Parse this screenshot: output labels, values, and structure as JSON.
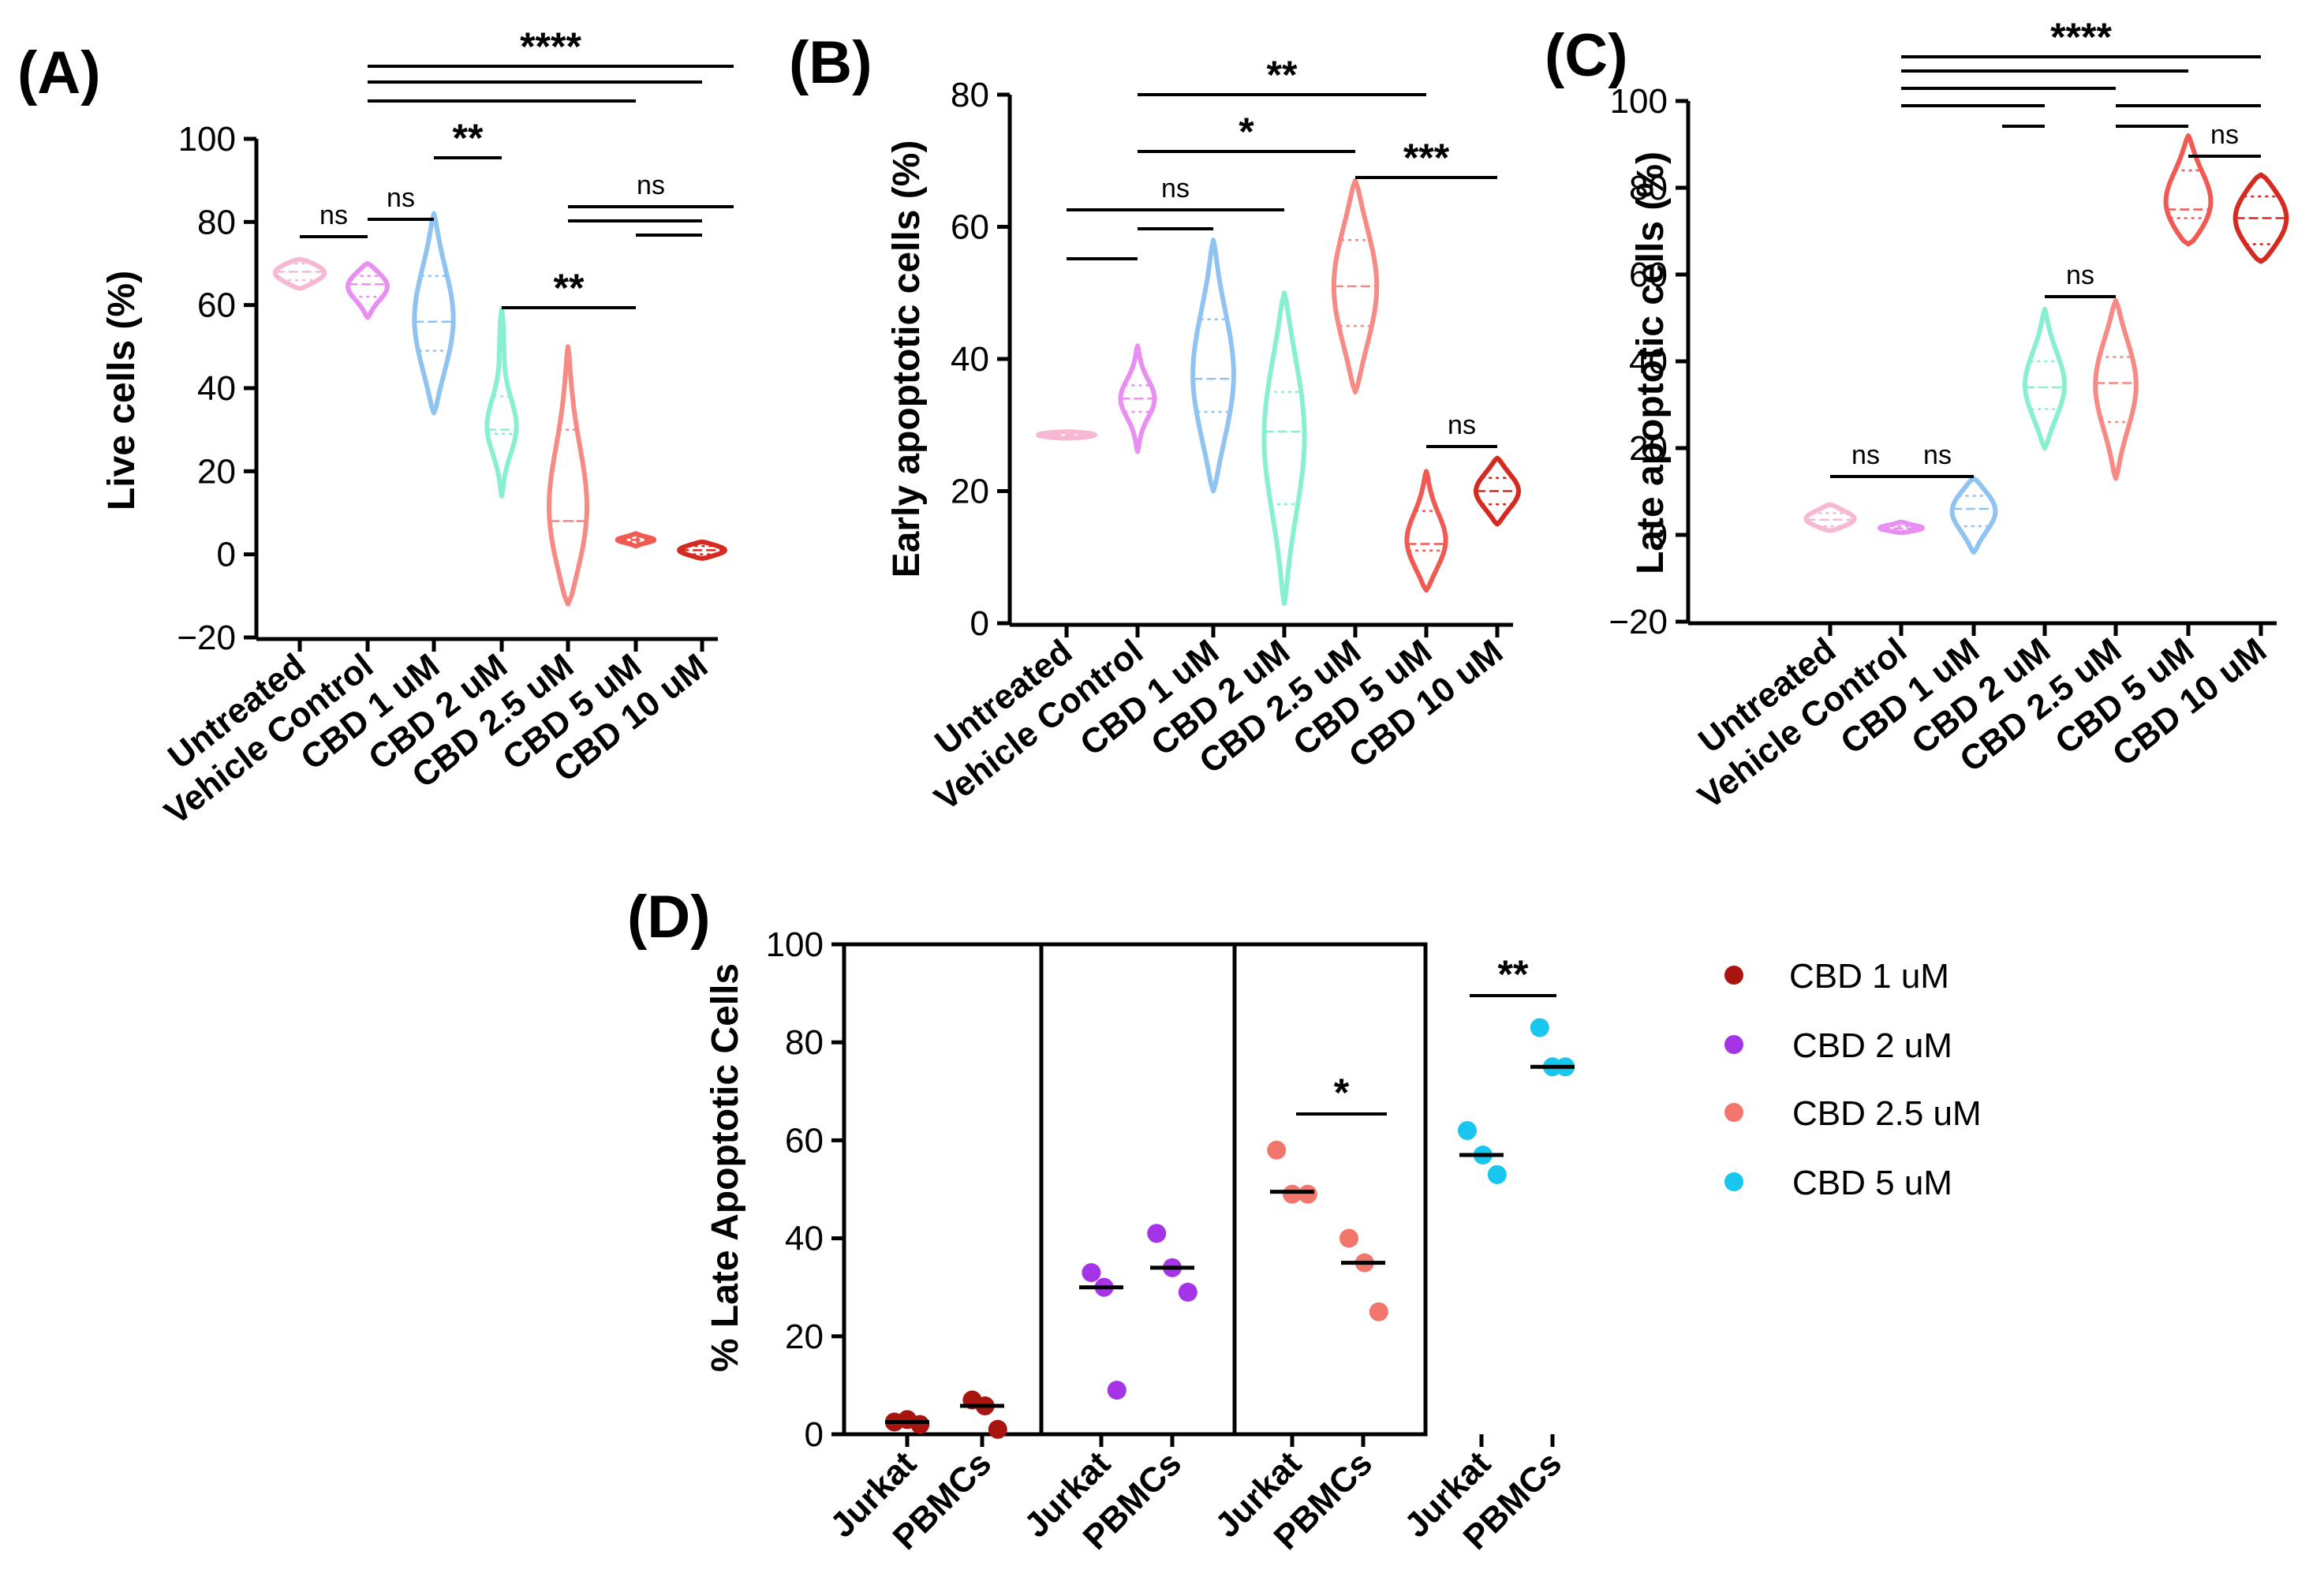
{
  "chart_data": [
    {
      "panel": "(A)",
      "type": "violin",
      "ylabel": "Live cells (%)",
      "ylim": [
        -20,
        100
      ],
      "yticks": [
        -20,
        0,
        20,
        40,
        60,
        80,
        100
      ],
      "ytick_labels": [
        "−20",
        "0",
        "20",
        "40",
        "60",
        "80",
        "100"
      ],
      "categories": [
        "Untreated",
        "Vehicle Control",
        "CBD 1 uM",
        "CBD 2 uM",
        "CBD 2.5 uM",
        "CBD 5 uM",
        "CBD 10 uM"
      ],
      "colors": [
        "#f7b8d4",
        "#e98ff2",
        "#8fc4f2",
        "#88f0d0",
        "#f78a84",
        "#f05a52",
        "#d42a20"
      ],
      "violins": [
        {
          "median": 68,
          "q1": 66,
          "q3": 70,
          "min": 64,
          "max": 71
        },
        {
          "median": 65,
          "q1": 62,
          "q3": 67,
          "min": 57,
          "max": 70
        },
        {
          "median": 56,
          "q1": 49,
          "q3": 67,
          "min": 34,
          "max": 82
        },
        {
          "median": 30,
          "q1": 29,
          "q3": 38,
          "min": 14,
          "max": 59
        },
        {
          "median": 8,
          "q1": 8,
          "q3": 30,
          "min": -12,
          "max": 50
        },
        {
          "median": 3.5,
          "q1": 3,
          "q3": 4,
          "min": 2,
          "max": 5
        },
        {
          "median": 1,
          "q1": 0,
          "q3": 2,
          "min": -1,
          "max": 3
        }
      ],
      "comparisons": [
        {
          "a": 0,
          "b": 1,
          "label": "ns"
        },
        {
          "a": 1,
          "b": 2,
          "label": "ns"
        },
        {
          "a": 2,
          "b": 3,
          "label": "**"
        },
        {
          "a": 3,
          "b": 5,
          "label": "**"
        },
        {
          "a": 5,
          "b": 6,
          "label": ""
        },
        {
          "a": 4,
          "b": 6,
          "label": ""
        },
        {
          "a": 4,
          "b": 7,
          "label": "ns"
        },
        {
          "a": 1,
          "b": 5,
          "label": ""
        },
        {
          "a": 1,
          "b": 6,
          "label": ""
        },
        {
          "a": 1,
          "b": 7,
          "label": "****"
        }
      ]
    },
    {
      "panel": "(B)",
      "type": "violin",
      "ylabel": "Early apoptotic cells (%)",
      "ylim": [
        0,
        80
      ],
      "yticks": [
        0,
        20,
        40,
        60,
        80
      ],
      "ytick_labels": [
        "0",
        "20",
        "40",
        "60",
        "80"
      ],
      "categories": [
        "Untreated",
        "Vehicle Control",
        "CBD 1 uM",
        "CBD 2 uM",
        "CBD 2.5 uM",
        "CBD 5 uM",
        "CBD 10 uM"
      ],
      "colors": [
        "#f7b8d4",
        "#e98ff2",
        "#8fc4f2",
        "#88f0d0",
        "#f78a84",
        "#f05a52",
        "#d42a20"
      ],
      "violins": [
        {
          "median": 28.5,
          "q1": 28,
          "q3": 29,
          "min": 28,
          "max": 29
        },
        {
          "median": 34,
          "q1": 32,
          "q3": 36,
          "min": 26,
          "max": 42
        },
        {
          "median": 37,
          "q1": 32,
          "q3": 46,
          "min": 20,
          "max": 58
        },
        {
          "median": 29,
          "q1": 18,
          "q3": 35,
          "min": 3,
          "max": 50
        },
        {
          "median": 51,
          "q1": 45,
          "q3": 58,
          "min": 35,
          "max": 67
        },
        {
          "median": 12,
          "q1": 11,
          "q3": 17,
          "min": 5,
          "max": 23
        },
        {
          "median": 20,
          "q1": 18,
          "q3": 22,
          "min": 15,
          "max": 25
        }
      ],
      "comparisons": [
        {
          "a": 0,
          "b": 1,
          "label": ""
        },
        {
          "a": 1,
          "b": 2,
          "label": ""
        },
        {
          "a": 0,
          "b": 3,
          "label": "ns"
        },
        {
          "a": 1,
          "b": 4,
          "label": "*"
        },
        {
          "a": 4,
          "b": 6,
          "label": "***"
        },
        {
          "a": 1,
          "b": 5,
          "label": "**"
        },
        {
          "a": 5,
          "b": 6,
          "label": "ns"
        }
      ]
    },
    {
      "panel": "(C)",
      "type": "violin",
      "ylabel": "Late apoptotic cells (%)",
      "ylim": [
        -20,
        100
      ],
      "yticks": [
        -20,
        0,
        20,
        40,
        60,
        80,
        100
      ],
      "ytick_labels": [
        "−20",
        "0",
        "20",
        "40",
        "60",
        "80",
        "100"
      ],
      "categories": [
        "Untreated",
        "Vehicle Control",
        "CBD 1 uM",
        "CBD 2 uM",
        "CBD 2.5 uM",
        "CBD 5 uM",
        "CBD 10 uM"
      ],
      "colors": [
        "#f7b8d4",
        "#e98ff2",
        "#8fc4f2",
        "#88f0d0",
        "#f78a84",
        "#f05a52",
        "#d42a20"
      ],
      "violins": [
        {
          "median": 3.5,
          "q1": 2,
          "q3": 5,
          "min": 1,
          "max": 7
        },
        {
          "median": 1.5,
          "q1": 1,
          "q3": 2,
          "min": 0.5,
          "max": 3
        },
        {
          "median": 6,
          "q1": 2,
          "q3": 9,
          "min": -4,
          "max": 13
        },
        {
          "median": 34,
          "q1": 29,
          "q3": 40,
          "min": 20,
          "max": 52
        },
        {
          "median": 35,
          "q1": 26,
          "q3": 41,
          "min": 13,
          "max": 54
        },
        {
          "median": 75,
          "q1": 73,
          "q3": 84,
          "min": 67,
          "max": 92
        },
        {
          "median": 73,
          "q1": 67,
          "q3": 78,
          "min": 63,
          "max": 83
        }
      ],
      "comparisons": [
        {
          "a": 0,
          "b": 1,
          "label": "ns"
        },
        {
          "a": 1,
          "b": 2,
          "label": "ns"
        },
        {
          "a": 2.4,
          "b": 3,
          "label": ""
        },
        {
          "a": 3,
          "b": 4,
          "label": "ns"
        },
        {
          "a": 4,
          "b": 5,
          "label": ""
        },
        {
          "a": 5,
          "b": 6,
          "label": "ns"
        },
        {
          "a": 1,
          "b": 3,
          "label": ""
        },
        {
          "a": 1,
          "b": 4,
          "label": ""
        },
        {
          "a": 4,
          "b": 6,
          "label": ""
        },
        {
          "a": 1,
          "b": 5,
          "label": ""
        },
        {
          "a": 1,
          "b": 6,
          "label": "****"
        }
      ]
    },
    {
      "panel": "(D)",
      "type": "scatter",
      "ylabel": "% Late Apoptotic Cells",
      "ylim": [
        0,
        100
      ],
      "yticks": [
        0,
        20,
        40,
        60,
        80,
        100
      ],
      "ytick_labels": [
        "0",
        "20",
        "40",
        "60",
        "80",
        "100"
      ],
      "categories": [
        "Jurkat",
        "PBMCs"
      ],
      "groups": [
        {
          "name": "CBD 1 uM",
          "color": "#a8140e",
          "jurkat": [
            2.5,
            3,
            2
          ],
          "jurkat_mean": 2.5,
          "pbmcs": [
            7,
            5.8,
            1
          ],
          "pbmcs_mean": 5.8,
          "sig": ""
        },
        {
          "name": "CBD 2 uM",
          "color": "#a534e6",
          "jurkat": [
            33,
            30,
            9
          ],
          "jurkat_mean": 30,
          "pbmcs": [
            41,
            34,
            29
          ],
          "pbmcs_mean": 34,
          "sig": ""
        },
        {
          "name": "CBD 2.5 uM",
          "color": "#f3766c",
          "jurkat": [
            58,
            49,
            49
          ],
          "jurkat_mean": 49.5,
          "pbmcs": [
            40,
            35,
            25
          ],
          "pbmcs_mean": 35,
          "sig": "*"
        },
        {
          "name": "CBD 5 uM",
          "color": "#18c6ee",
          "jurkat": [
            62,
            57,
            53
          ],
          "jurkat_mean": 57,
          "pbmcs": [
            83,
            75,
            75
          ],
          "pbmcs_mean": 75,
          "sig": "**"
        }
      ]
    }
  ]
}
